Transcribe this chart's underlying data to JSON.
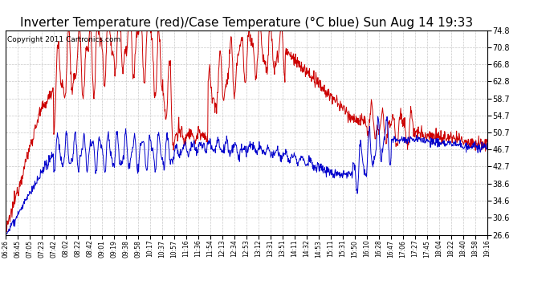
{
  "title": "Inverter Temperature (red)/Case Temperature (°C blue) Sun Aug 14 19:33",
  "copyright": "Copyright 2011 Cartronics.com",
  "yticks": [
    26.6,
    30.6,
    34.6,
    38.6,
    42.7,
    46.7,
    50.7,
    54.7,
    58.7,
    62.8,
    66.8,
    70.8,
    74.8
  ],
  "ylim": [
    26.6,
    74.8
  ],
  "xtick_labels": [
    "06:26",
    "06:45",
    "07:05",
    "07:23",
    "07:42",
    "08:02",
    "08:22",
    "08:42",
    "09:01",
    "09:19",
    "09:38",
    "09:58",
    "10:17",
    "10:37",
    "10:57",
    "11:16",
    "11:36",
    "11:54",
    "12:13",
    "12:34",
    "12:53",
    "13:12",
    "13:31",
    "13:51",
    "14:11",
    "14:32",
    "14:53",
    "15:11",
    "15:31",
    "15:50",
    "16:10",
    "16:28",
    "16:47",
    "17:06",
    "17:27",
    "17:45",
    "18:04",
    "18:22",
    "18:40",
    "18:58",
    "19:16"
  ],
  "bg_color": "#ffffff",
  "plot_bg_color": "#ffffff",
  "grid_color": "#c8c8c8",
  "red_color": "#cc0000",
  "blue_color": "#0000cc",
  "title_fontsize": 11,
  "copyright_fontsize": 6.5
}
